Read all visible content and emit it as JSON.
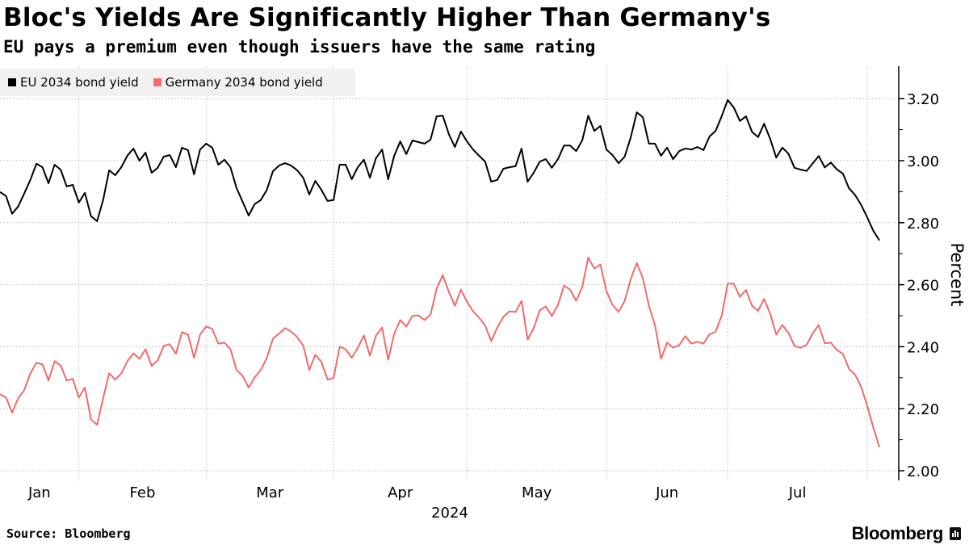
{
  "header": {
    "title": "Bloc's Yields Are Significantly Higher Than Germany's",
    "subtitle": "EU pays a premium even though issuers have the same rating"
  },
  "footer": {
    "source": "Source: Bloomberg",
    "logo": "Bloomberg"
  },
  "colors": {
    "eu": "#000000",
    "germany": "#f26a6a",
    "legend_bg": "#f1f1f1",
    "grid": "#c8c8c8"
  },
  "chart_data": {
    "type": "line",
    "title": "Bloc's Yields Are Significantly Higher Than Germany's",
    "subtitle": "EU pays a premium even though issuers have the same rating",
    "xlabel": "2024",
    "ylabel": "Percent",
    "ylim": [
      2.0,
      3.3
    ],
    "yticks": [
      "2.00",
      "2.20",
      "2.40",
      "2.60",
      "2.80",
      "3.00",
      "3.20"
    ],
    "xtick_labels": [
      "Jan",
      "Feb",
      "Mar",
      "Apr",
      "May",
      "Jun",
      "Jul"
    ],
    "grid": true,
    "legend_position": "top-left",
    "x": [
      "2024-01-15",
      "2024-01-16",
      "2024-01-17",
      "2024-01-18",
      "2024-01-19",
      "2024-01-22",
      "2024-01-23",
      "2024-01-24",
      "2024-01-25",
      "2024-01-26",
      "2024-01-29",
      "2024-01-30",
      "2024-01-31",
      "2024-02-01",
      "2024-02-02",
      "2024-02-05",
      "2024-02-06",
      "2024-02-07",
      "2024-02-08",
      "2024-02-09",
      "2024-02-12",
      "2024-02-13",
      "2024-02-14",
      "2024-02-15",
      "2024-02-16",
      "2024-02-19",
      "2024-02-20",
      "2024-02-21",
      "2024-02-22",
      "2024-02-23",
      "2024-02-26",
      "2024-02-27",
      "2024-02-28",
      "2024-02-29",
      "2024-03-01",
      "2024-03-04",
      "2024-03-05",
      "2024-03-06",
      "2024-03-07",
      "2024-03-08",
      "2024-03-11",
      "2024-03-12",
      "2024-03-13",
      "2024-03-14",
      "2024-03-15",
      "2024-03-18",
      "2024-03-19",
      "2024-03-20",
      "2024-03-21",
      "2024-03-22",
      "2024-03-25",
      "2024-03-26",
      "2024-03-27",
      "2024-03-28",
      "2024-03-29",
      "2024-04-01",
      "2024-04-02",
      "2024-04-03",
      "2024-04-04",
      "2024-04-05",
      "2024-04-08",
      "2024-04-09",
      "2024-04-10",
      "2024-04-11",
      "2024-04-12",
      "2024-04-15",
      "2024-04-16",
      "2024-04-17",
      "2024-04-18",
      "2024-04-19",
      "2024-04-22",
      "2024-04-23",
      "2024-04-24",
      "2024-04-25",
      "2024-04-26",
      "2024-04-29",
      "2024-04-30",
      "2024-05-01",
      "2024-05-02",
      "2024-05-03",
      "2024-05-06",
      "2024-05-07",
      "2024-05-08",
      "2024-05-09",
      "2024-05-10",
      "2024-05-13",
      "2024-05-14",
      "2024-05-15",
      "2024-05-16",
      "2024-05-17",
      "2024-05-20",
      "2024-05-21",
      "2024-05-22",
      "2024-05-23",
      "2024-05-24",
      "2024-05-27",
      "2024-05-28",
      "2024-05-29",
      "2024-05-30",
      "2024-05-31",
      "2024-06-03",
      "2024-06-04",
      "2024-06-05",
      "2024-06-06",
      "2024-06-07",
      "2024-06-10",
      "2024-06-11",
      "2024-06-12",
      "2024-06-13",
      "2024-06-14",
      "2024-06-17",
      "2024-06-18",
      "2024-06-19",
      "2024-06-20",
      "2024-06-21",
      "2024-06-24",
      "2024-06-25",
      "2024-06-26",
      "2024-06-27",
      "2024-06-28",
      "2024-07-01",
      "2024-07-02",
      "2024-07-03",
      "2024-07-04",
      "2024-07-05",
      "2024-07-08",
      "2024-07-09",
      "2024-07-10",
      "2024-07-11",
      "2024-07-12",
      "2024-07-15",
      "2024-07-16",
      "2024-07-17",
      "2024-07-18",
      "2024-07-19",
      "2024-07-22",
      "2024-07-23",
      "2024-07-24",
      "2024-07-25",
      "2024-07-26",
      "2024-07-29",
      "2024-07-30",
      "2024-07-31",
      "2024-08-01",
      "2024-08-02",
      "2024-08-05"
    ],
    "series": [
      {
        "name": "EU 2034 bond yield",
        "color": "#000000",
        "values": [
          2.899,
          2.886,
          2.829,
          2.852,
          2.894,
          2.938,
          2.99,
          2.979,
          2.927,
          2.987,
          2.971,
          2.917,
          2.922,
          2.865,
          2.896,
          2.821,
          2.805,
          2.873,
          2.969,
          2.953,
          2.979,
          3.016,
          3.039,
          3.0,
          3.026,
          2.961,
          2.977,
          3.013,
          3.018,
          2.979,
          3.042,
          3.034,
          2.956,
          3.036,
          3.055,
          3.042,
          2.987,
          3.003,
          2.979,
          2.912,
          2.868,
          2.823,
          2.86,
          2.873,
          2.906,
          2.966,
          2.984,
          2.992,
          2.984,
          2.969,
          2.945,
          2.891,
          2.935,
          2.906,
          2.87,
          2.873,
          2.987,
          2.987,
          2.94,
          2.979,
          3.003,
          2.945,
          3.008,
          3.036,
          2.94,
          3.016,
          3.062,
          3.021,
          3.065,
          3.06,
          3.055,
          3.068,
          3.143,
          3.145,
          3.086,
          3.044,
          3.094,
          3.062,
          3.036,
          3.016,
          2.997,
          2.932,
          2.938,
          2.974,
          2.979,
          2.982,
          3.039,
          2.932,
          2.961,
          2.997,
          3.005,
          2.977,
          3.005,
          3.049,
          3.049,
          3.031,
          3.065,
          3.145,
          3.096,
          3.112,
          3.036,
          3.018,
          2.992,
          3.013,
          3.075,
          3.156,
          3.14,
          3.055,
          3.055,
          3.016,
          3.042,
          3.005,
          3.031,
          3.039,
          3.036,
          3.044,
          3.034,
          3.078,
          3.096,
          3.143,
          3.196,
          3.171,
          3.128,
          3.143,
          3.093,
          3.076,
          3.119,
          3.07,
          3.01,
          3.042,
          3.023,
          2.977,
          2.971,
          2.967,
          2.991,
          3.015,
          2.978,
          2.994,
          2.972,
          2.958,
          2.911,
          2.889,
          2.857,
          2.817,
          2.774,
          2.743
        ]
      },
      {
        "name": "Germany 2034 bond yield",
        "color": "#f26a6a",
        "values": [
          2.247,
          2.236,
          2.187,
          2.234,
          2.26,
          2.314,
          2.348,
          2.343,
          2.291,
          2.353,
          2.34,
          2.291,
          2.296,
          2.236,
          2.268,
          2.166,
          2.148,
          2.234,
          2.314,
          2.294,
          2.314,
          2.353,
          2.379,
          2.361,
          2.392,
          2.338,
          2.356,
          2.403,
          2.408,
          2.377,
          2.447,
          2.439,
          2.364,
          2.439,
          2.465,
          2.457,
          2.41,
          2.413,
          2.392,
          2.325,
          2.306,
          2.268,
          2.301,
          2.325,
          2.364,
          2.426,
          2.442,
          2.46,
          2.449,
          2.431,
          2.403,
          2.325,
          2.374,
          2.351,
          2.294,
          2.299,
          2.4,
          2.392,
          2.364,
          2.397,
          2.436,
          2.371,
          2.436,
          2.462,
          2.358,
          2.442,
          2.486,
          2.465,
          2.499,
          2.501,
          2.486,
          2.504,
          2.587,
          2.631,
          2.577,
          2.532,
          2.584,
          2.545,
          2.514,
          2.494,
          2.468,
          2.418,
          2.462,
          2.496,
          2.514,
          2.512,
          2.548,
          2.423,
          2.46,
          2.517,
          2.53,
          2.499,
          2.535,
          2.597,
          2.584,
          2.548,
          2.592,
          2.688,
          2.652,
          2.665,
          2.579,
          2.535,
          2.512,
          2.548,
          2.618,
          2.67,
          2.621,
          2.532,
          2.47,
          2.361,
          2.413,
          2.397,
          2.405,
          2.434,
          2.41,
          2.416,
          2.41,
          2.44,
          2.448,
          2.5,
          2.604,
          2.603,
          2.561,
          2.583,
          2.532,
          2.516,
          2.554,
          2.506,
          2.439,
          2.47,
          2.445,
          2.402,
          2.396,
          2.406,
          2.443,
          2.47,
          2.411,
          2.413,
          2.389,
          2.377,
          2.329,
          2.31,
          2.27,
          2.209,
          2.139,
          2.076
        ]
      }
    ]
  }
}
